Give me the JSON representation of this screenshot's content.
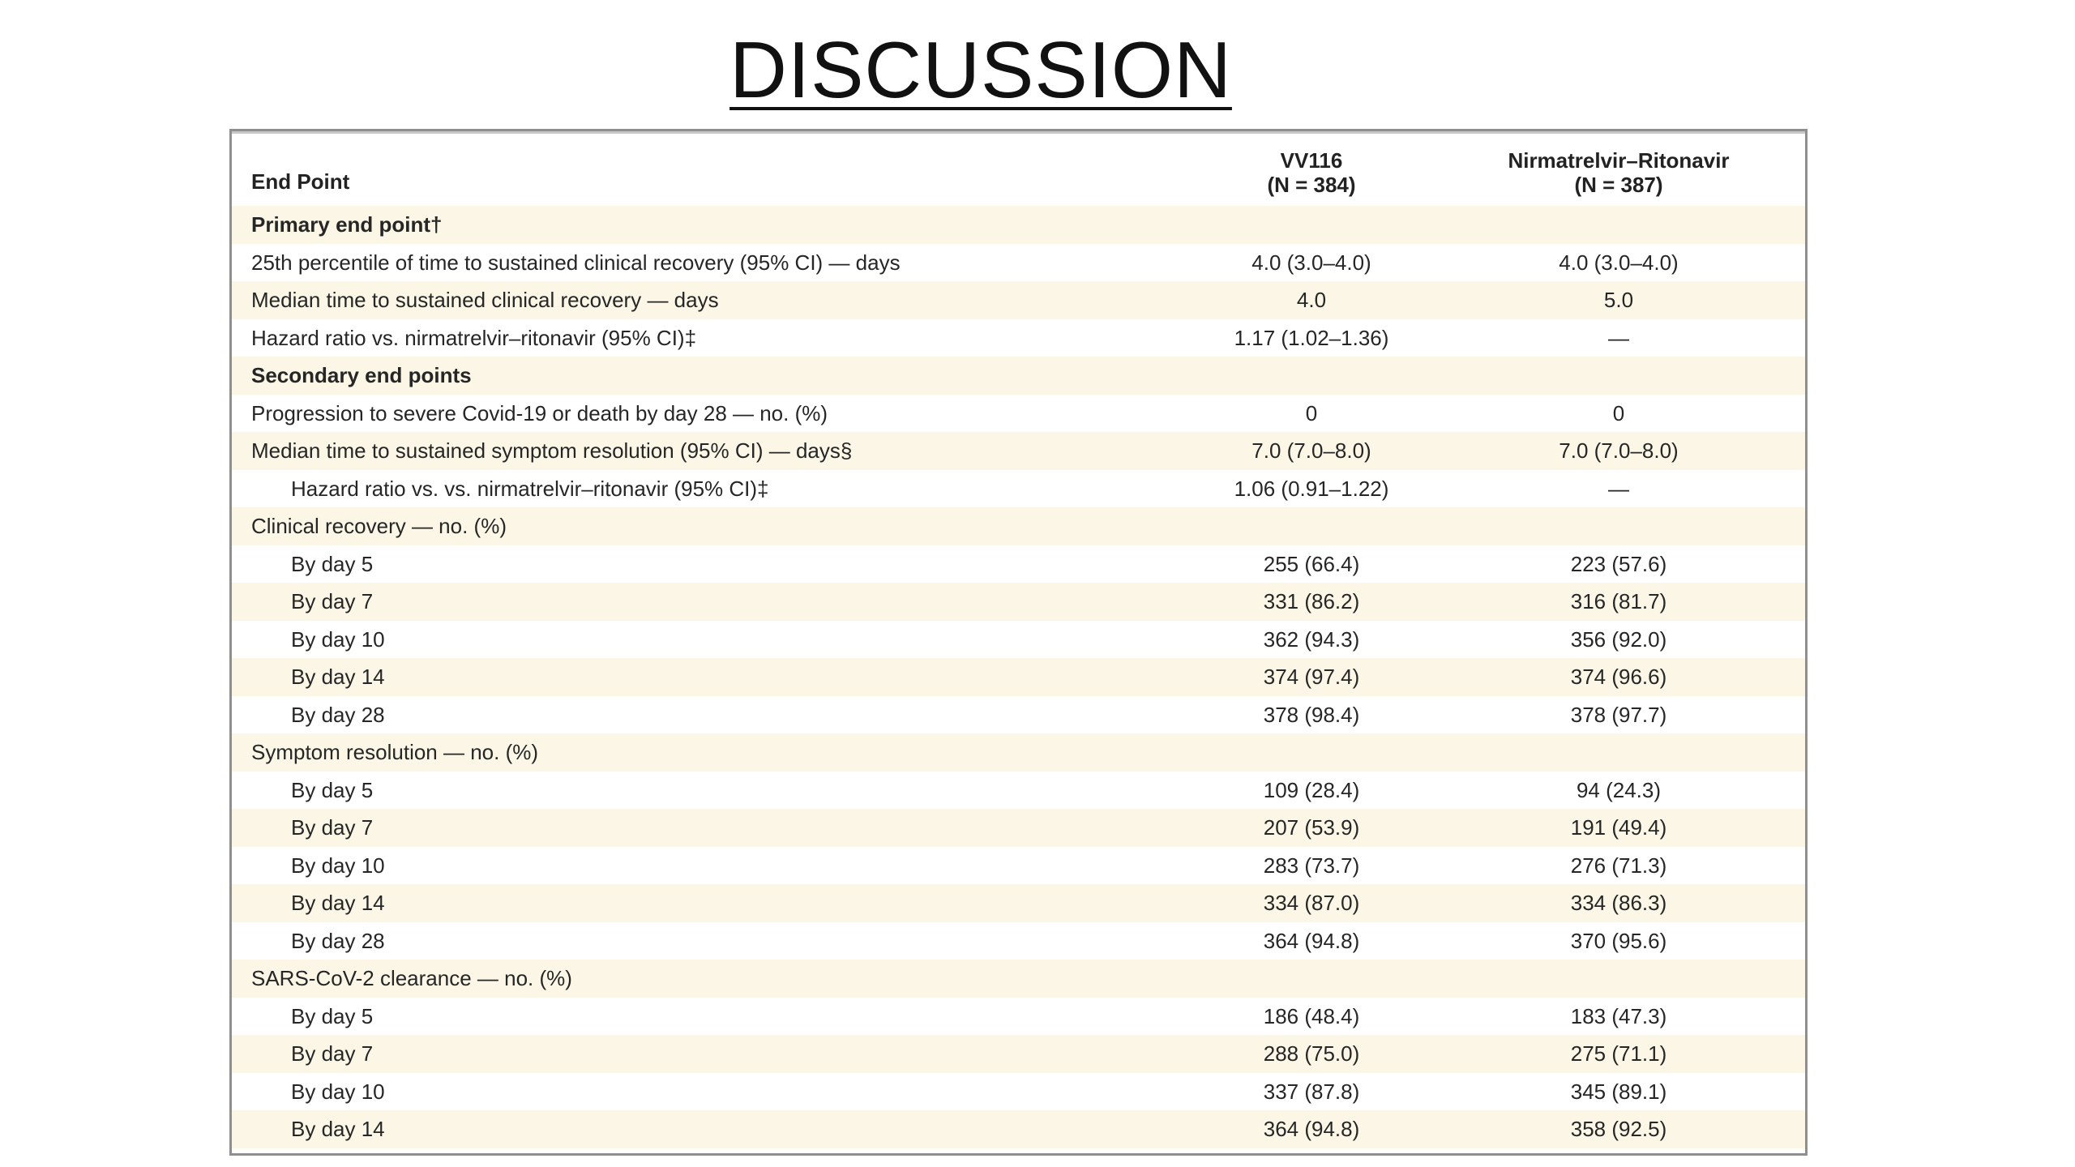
{
  "title": "DISCUSSION",
  "table": {
    "header": {
      "endpoint": "End Point",
      "col1_name": "VV116",
      "col1_n": "(N = 384)",
      "col2_name": "Nirmatrelvir–Ritonavir",
      "col2_n": "(N = 387)"
    },
    "rows": [
      {
        "label": "Primary end point†",
        "v1": "",
        "v2": "",
        "kind": "section"
      },
      {
        "label": "25th percentile of time to sustained clinical recovery (95% CI) — days",
        "v1": "4.0 (3.0–4.0)",
        "v2": "4.0 (3.0–4.0)",
        "kind": "item"
      },
      {
        "label": "Median time to sustained clinical recovery — days",
        "v1": "4.0",
        "v2": "5.0",
        "kind": "item"
      },
      {
        "label": "Hazard ratio vs. nirmatrelvir–ritonavir (95% CI)‡",
        "v1": "1.17 (1.02–1.36)",
        "v2": "—",
        "kind": "item"
      },
      {
        "label": "Secondary end points",
        "v1": "",
        "v2": "",
        "kind": "section"
      },
      {
        "label": "Progression to severe Covid-19 or death by day 28 — no. (%)",
        "v1": "0",
        "v2": "0",
        "kind": "item"
      },
      {
        "label": "Median time to sustained symptom resolution (95% CI) — days§",
        "v1": "7.0 (7.0–8.0)",
        "v2": "7.0 (7.0–8.0)",
        "kind": "item"
      },
      {
        "label": "Hazard ratio vs. vs. nirmatrelvir–ritonavir (95% CI)‡",
        "v1": "1.06 (0.91–1.22)",
        "v2": "—",
        "kind": "sub"
      },
      {
        "label": "Clinical recovery — no. (%)",
        "v1": "",
        "v2": "",
        "kind": "item"
      },
      {
        "label": "By day 5",
        "v1": "255 (66.4)",
        "v2": "223 (57.6)",
        "kind": "sub"
      },
      {
        "label": "By day 7",
        "v1": "331 (86.2)",
        "v2": "316 (81.7)",
        "kind": "sub"
      },
      {
        "label": "By day 10",
        "v1": "362 (94.3)",
        "v2": "356 (92.0)",
        "kind": "sub"
      },
      {
        "label": "By day 14",
        "v1": "374 (97.4)",
        "v2": "374 (96.6)",
        "kind": "sub"
      },
      {
        "label": "By day 28",
        "v1": "378 (98.4)",
        "v2": "378 (97.7)",
        "kind": "sub"
      },
      {
        "label": "Symptom resolution — no. (%)",
        "v1": "",
        "v2": "",
        "kind": "item"
      },
      {
        "label": "By day 5",
        "v1": "109 (28.4)",
        "v2": "94 (24.3)",
        "kind": "sub"
      },
      {
        "label": "By day 7",
        "v1": "207 (53.9)",
        "v2": "191 (49.4)",
        "kind": "sub"
      },
      {
        "label": "By day 10",
        "v1": "283 (73.7)",
        "v2": "276 (71.3)",
        "kind": "sub"
      },
      {
        "label": "By day 14",
        "v1": "334 (87.0)",
        "v2": "334 (86.3)",
        "kind": "sub"
      },
      {
        "label": "By day 28",
        "v1": "364 (94.8)",
        "v2": "370 (95.6)",
        "kind": "sub"
      },
      {
        "label": "SARS-CoV-2 clearance — no. (%)",
        "v1": "",
        "v2": "",
        "kind": "item"
      },
      {
        "label": "By day 5",
        "v1": "186 (48.4)",
        "v2": "183 (47.3)",
        "kind": "sub"
      },
      {
        "label": "By day 7",
        "v1": "288 (75.0)",
        "v2": "275 (71.1)",
        "kind": "sub"
      },
      {
        "label": "By day 10",
        "v1": "337 (87.8)",
        "v2": "345 (89.1)",
        "kind": "sub"
      },
      {
        "label": "By day 14",
        "v1": "364 (94.8)",
        "v2": "358 (92.5)",
        "kind": "sub"
      }
    ]
  }
}
